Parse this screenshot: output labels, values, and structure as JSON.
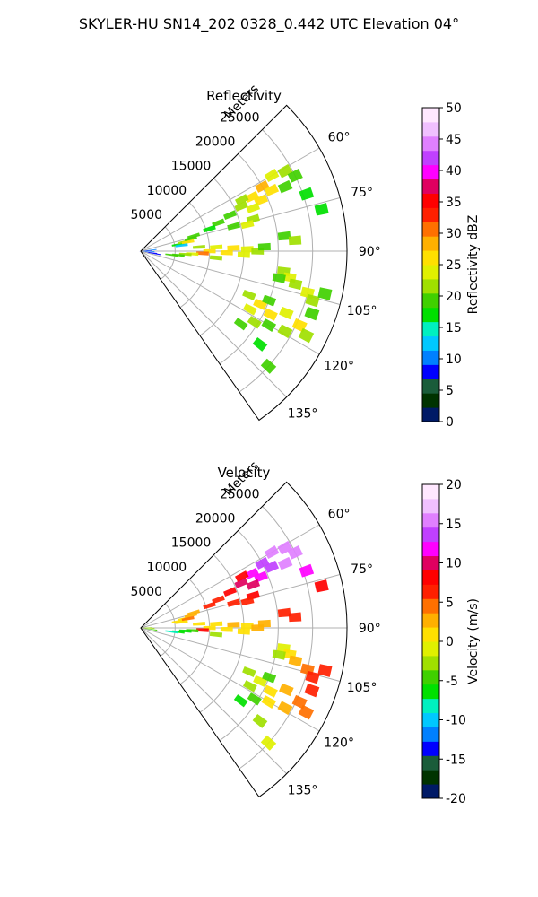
{
  "figure": {
    "title": "SKYLER-HU  SN14_202  0328_0.442 UTC Elevation 04°"
  },
  "chart_data": [
    {
      "type": "heatmap",
      "projection": "polar-sector",
      "title": "Reflectivity",
      "range_label": "Meters",
      "range_ticks": [
        5000,
        10000,
        15000,
        20000,
        25000
      ],
      "range_max": 30000,
      "azimuth_range_deg": [
        45,
        145
      ],
      "azimuth_ticks": [
        "60°",
        "75°",
        "90°",
        "105°",
        "120°",
        "135°"
      ],
      "grid": true,
      "colorbar": {
        "label": "Reflectivity dBZ",
        "ticks": [
          0,
          5,
          10,
          15,
          20,
          25,
          30,
          35,
          40,
          45,
          50
        ],
        "min": 0,
        "max": 50,
        "colors": [
          "#001a66",
          "#003300",
          "#1a5c3a",
          "#0000ff",
          "#0080ff",
          "#00c8ff",
          "#00f0c0",
          "#00e000",
          "#40d000",
          "#a0e000",
          "#e0f000",
          "#ffe000",
          "#ffb000",
          "#ff7000",
          "#ff2000",
          "#ff0000",
          "#e00060",
          "#ff00ff",
          "#c040ff",
          "#e080ff",
          "#f0c0ff",
          "#ffe8ff"
        ]
      },
      "cells": [
        {
          "az": 88,
          "r": 700,
          "v": 8
        },
        {
          "az": 92,
          "r": 1100,
          "v": 10
        },
        {
          "az": 98,
          "r": 1500,
          "v": 9
        },
        {
          "az": 84,
          "r": 1400,
          "v": 11
        },
        {
          "az": 100,
          "r": 2000,
          "v": 8
        },
        {
          "az": 80,
          "r": 5500,
          "v": 17
        },
        {
          "az": 78,
          "r": 6500,
          "v": 22
        },
        {
          "az": 76,
          "r": 7500,
          "v": 20
        },
        {
          "az": 74,
          "r": 8000,
          "v": 19
        },
        {
          "az": 79,
          "r": 7000,
          "v": 26
        },
        {
          "az": 82,
          "r": 6000,
          "v": 12
        },
        {
          "az": 66,
          "r": 16000,
          "v": 22
        },
        {
          "az": 64,
          "r": 18000,
          "v": 26
        },
        {
          "az": 62,
          "r": 20000,
          "v": 28
        },
        {
          "az": 60,
          "r": 22000,
          "v": 24
        },
        {
          "az": 63,
          "r": 16500,
          "v": 21
        },
        {
          "az": 67,
          "r": 19000,
          "v": 25
        },
        {
          "az": 65,
          "r": 21000,
          "v": 27
        },
        {
          "az": 61,
          "r": 24000,
          "v": 22
        },
        {
          "az": 68,
          "r": 14000,
          "v": 20
        },
        {
          "az": 70,
          "r": 12000,
          "v": 19
        },
        {
          "az": 72,
          "r": 10500,
          "v": 18
        },
        {
          "az": 69,
          "r": 17500,
          "v": 23
        },
        {
          "az": 66,
          "r": 23000,
          "v": 20
        },
        {
          "az": 64,
          "r": 25000,
          "v": 19
        },
        {
          "az": 75,
          "r": 14000,
          "v": 20
        },
        {
          "az": 74,
          "r": 17000,
          "v": 22
        },
        {
          "az": 76,
          "r": 16000,
          "v": 24
        },
        {
          "az": 86,
          "r": 8500,
          "v": 21
        },
        {
          "az": 87,
          "r": 11000,
          "v": 23
        },
        {
          "az": 88,
          "r": 13500,
          "v": 26
        },
        {
          "az": 89,
          "r": 15500,
          "v": 24
        },
        {
          "az": 90,
          "r": 10000,
          "v": 27
        },
        {
          "az": 91,
          "r": 12500,
          "v": 25
        },
        {
          "az": 92,
          "r": 9000,
          "v": 30
        },
        {
          "az": 93,
          "r": 7500,
          "v": 24
        },
        {
          "az": 94,
          "r": 6500,
          "v": 22
        },
        {
          "az": 96,
          "r": 5500,
          "v": 20
        },
        {
          "az": 97,
          "r": 4500,
          "v": 19
        },
        {
          "az": 95,
          "r": 11000,
          "v": 22
        },
        {
          "az": 90,
          "r": 17000,
          "v": 21
        },
        {
          "az": 88,
          "r": 18000,
          "v": 19
        },
        {
          "az": 92,
          "r": 15000,
          "v": 23
        },
        {
          "az": 84,
          "r": 21000,
          "v": 20
        },
        {
          "az": 86,
          "r": 22500,
          "v": 22
        },
        {
          "az": 98,
          "r": 21000,
          "v": 21
        },
        {
          "az": 100,
          "r": 22000,
          "v": 24
        },
        {
          "az": 102,
          "r": 23000,
          "v": 22
        },
        {
          "az": 101,
          "r": 20500,
          "v": 20
        },
        {
          "az": 104,
          "r": 25000,
          "v": 23
        },
        {
          "az": 106,
          "r": 26000,
          "v": 21
        },
        {
          "az": 103,
          "r": 27500,
          "v": 20
        },
        {
          "az": 112,
          "r": 17000,
          "v": 22
        },
        {
          "az": 114,
          "r": 19000,
          "v": 25
        },
        {
          "az": 116,
          "r": 21000,
          "v": 27
        },
        {
          "az": 118,
          "r": 18000,
          "v": 24
        },
        {
          "az": 113,
          "r": 23000,
          "v": 23
        },
        {
          "az": 115,
          "r": 25500,
          "v": 26
        },
        {
          "az": 117,
          "r": 27000,
          "v": 22
        },
        {
          "az": 119,
          "r": 24000,
          "v": 21
        },
        {
          "az": 110,
          "r": 26500,
          "v": 20
        },
        {
          "az": 120,
          "r": 21500,
          "v": 19
        },
        {
          "az": 122,
          "r": 19500,
          "v": 21
        },
        {
          "az": 111,
          "r": 20000,
          "v": 20
        },
        {
          "az": 126,
          "r": 18000,
          "v": 19
        },
        {
          "az": 128,
          "r": 22000,
          "v": 18
        },
        {
          "az": 132,
          "r": 25000,
          "v": 20
        },
        {
          "az": 77,
          "r": 27000,
          "v": 17
        },
        {
          "az": 71,
          "r": 25500,
          "v": 16
        }
      ]
    },
    {
      "type": "heatmap",
      "projection": "polar-sector",
      "title": "Velocity",
      "range_label": "Meters",
      "range_ticks": [
        5000,
        10000,
        15000,
        20000,
        25000
      ],
      "range_max": 30000,
      "azimuth_range_deg": [
        45,
        145
      ],
      "azimuth_ticks": [
        "60°",
        "75°",
        "90°",
        "105°",
        "120°",
        "135°"
      ],
      "grid": true,
      "colorbar": {
        "label": "Velocity (m/s)",
        "ticks": [
          -20,
          -15,
          -10,
          -5,
          0,
          5,
          10,
          15,
          20
        ],
        "min": -20,
        "max": 20,
        "colors": [
          "#001a66",
          "#003300",
          "#1a5c3a",
          "#0000ff",
          "#0080ff",
          "#00c8ff",
          "#00f0c0",
          "#00e000",
          "#40d000",
          "#a0e000",
          "#e0f000",
          "#ffe000",
          "#ffb000",
          "#ff7000",
          "#ff2000",
          "#ff0000",
          "#e00060",
          "#ff00ff",
          "#c040ff",
          "#e080ff",
          "#f0c0ff",
          "#ffe8ff"
        ]
      },
      "cells": [
        {
          "az": 88,
          "r": 700,
          "v": -2
        },
        {
          "az": 92,
          "r": 1100,
          "v": -3
        },
        {
          "az": 98,
          "r": 1500,
          "v": -4
        },
        {
          "az": 80,
          "r": 5500,
          "v": 0
        },
        {
          "az": 78,
          "r": 6500,
          "v": 1
        },
        {
          "az": 76,
          "r": 7500,
          "v": 2
        },
        {
          "az": 74,
          "r": 8000,
          "v": 3
        },
        {
          "az": 79,
          "r": 7000,
          "v": 4
        },
        {
          "az": 82,
          "r": 6000,
          "v": 0
        },
        {
          "az": 66,
          "r": 16000,
          "v": 10
        },
        {
          "az": 64,
          "r": 18000,
          "v": 11
        },
        {
          "az": 62,
          "r": 20000,
          "v": 13
        },
        {
          "az": 60,
          "r": 22000,
          "v": 15
        },
        {
          "az": 63,
          "r": 16500,
          "v": 9
        },
        {
          "az": 67,
          "r": 19000,
          "v": 11
        },
        {
          "az": 65,
          "r": 21000,
          "v": 14
        },
        {
          "az": 61,
          "r": 24000,
          "v": 16
        },
        {
          "az": 68,
          "r": 14000,
          "v": 8
        },
        {
          "az": 70,
          "r": 12000,
          "v": 7
        },
        {
          "az": 72,
          "r": 10500,
          "v": 6
        },
        {
          "az": 69,
          "r": 17500,
          "v": 10
        },
        {
          "az": 66,
          "r": 23000,
          "v": 15
        },
        {
          "az": 64,
          "r": 25000,
          "v": 16
        },
        {
          "az": 75,
          "r": 14000,
          "v": 6
        },
        {
          "az": 74,
          "r": 17000,
          "v": 8
        },
        {
          "az": 76,
          "r": 16000,
          "v": 7
        },
        {
          "az": 86,
          "r": 8500,
          "v": 1
        },
        {
          "az": 87,
          "r": 11000,
          "v": 1
        },
        {
          "az": 88,
          "r": 13500,
          "v": 2
        },
        {
          "az": 89,
          "r": 15500,
          "v": 1
        },
        {
          "az": 90,
          "r": 10000,
          "v": 0
        },
        {
          "az": 91,
          "r": 12500,
          "v": 0
        },
        {
          "az": 92,
          "r": 9000,
          "v": 9
        },
        {
          "az": 93,
          "r": 7500,
          "v": -4
        },
        {
          "az": 94,
          "r": 6500,
          "v": -6
        },
        {
          "az": 96,
          "r": 5500,
          "v": -7
        },
        {
          "az": 97,
          "r": 4500,
          "v": -8
        },
        {
          "az": 95,
          "r": 11000,
          "v": -3
        },
        {
          "az": 90,
          "r": 17000,
          "v": 2
        },
        {
          "az": 88,
          "r": 18000,
          "v": 3
        },
        {
          "az": 92,
          "r": 15000,
          "v": 1
        },
        {
          "az": 84,
          "r": 21000,
          "v": 6
        },
        {
          "az": 86,
          "r": 22500,
          "v": 7
        },
        {
          "az": 98,
          "r": 21000,
          "v": -1
        },
        {
          "az": 100,
          "r": 22000,
          "v": 0
        },
        {
          "az": 102,
          "r": 23000,
          "v": 2
        },
        {
          "az": 101,
          "r": 20500,
          "v": -2
        },
        {
          "az": 104,
          "r": 25000,
          "v": 5
        },
        {
          "az": 106,
          "r": 26000,
          "v": 6
        },
        {
          "az": 103,
          "r": 27500,
          "v": 7
        },
        {
          "az": 112,
          "r": 17000,
          "v": -3
        },
        {
          "az": 114,
          "r": 19000,
          "v": -1
        },
        {
          "az": 116,
          "r": 21000,
          "v": 1
        },
        {
          "az": 118,
          "r": 18000,
          "v": -2
        },
        {
          "az": 113,
          "r": 23000,
          "v": 3
        },
        {
          "az": 115,
          "r": 25500,
          "v": 5
        },
        {
          "az": 117,
          "r": 27000,
          "v": 4
        },
        {
          "az": 119,
          "r": 24000,
          "v": 2
        },
        {
          "az": 110,
          "r": 26500,
          "v": 6
        },
        {
          "az": 120,
          "r": 21500,
          "v": 0
        },
        {
          "az": 122,
          "r": 19500,
          "v": -4
        },
        {
          "az": 111,
          "r": 20000,
          "v": -5
        },
        {
          "az": 126,
          "r": 18000,
          "v": -6
        },
        {
          "az": 128,
          "r": 22000,
          "v": -3
        },
        {
          "az": 132,
          "r": 25000,
          "v": -1
        },
        {
          "az": 77,
          "r": 27000,
          "v": 9
        },
        {
          "az": 71,
          "r": 25500,
          "v": 12
        }
      ]
    }
  ]
}
